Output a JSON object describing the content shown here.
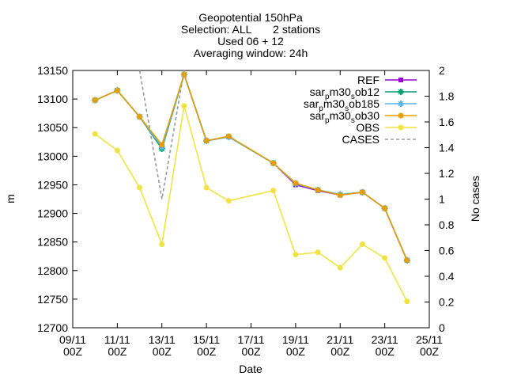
{
  "chart_data": {
    "type": "line",
    "title_lines": [
      "Geopotential 150hPa",
      "Selection: ALL       2 stations",
      "Used 06 + 12",
      "Averaging window: 24h"
    ],
    "xlabel": "Date",
    "ylabel": "m",
    "y2label": "No cases",
    "x_range": [
      "2022-11-09T00:00",
      "2022-11-25T00:00"
    ],
    "x_ticks": [
      {
        "date": "2022-11-09T00:00",
        "line1": "09/11",
        "line2": "00Z"
      },
      {
        "date": "2022-11-11T00:00",
        "line1": "11/11",
        "line2": "00Z"
      },
      {
        "date": "2022-11-13T00:00",
        "line1": "13/11",
        "line2": "00Z"
      },
      {
        "date": "2022-11-15T00:00",
        "line1": "15/11",
        "line2": "00Z"
      },
      {
        "date": "2022-11-17T00:00",
        "line1": "17/11",
        "line2": "00Z"
      },
      {
        "date": "2022-11-19T00:00",
        "line1": "19/11",
        "line2": "00Z"
      },
      {
        "date": "2022-11-21T00:00",
        "line1": "21/11",
        "line2": "00Z"
      },
      {
        "date": "2022-11-23T00:00",
        "line1": "23/11",
        "line2": "00Z"
      },
      {
        "date": "2022-11-25T00:00",
        "line1": "25/11",
        "line2": "00Z"
      }
    ],
    "ylim": [
      12700,
      13150
    ],
    "y_ticks": [
      12700,
      12750,
      12800,
      12850,
      12900,
      12950,
      13000,
      13050,
      13100,
      13150
    ],
    "y2lim": [
      0,
      2
    ],
    "y2_ticks": [
      0,
      0.2,
      0.4,
      0.6,
      0.8,
      1,
      1.2,
      1.4,
      1.6,
      1.8,
      2
    ],
    "legend_position": "top-right",
    "x": [
      "2022-11-10T00:00",
      "2022-11-11T00:00",
      "2022-11-12T00:00",
      "2022-11-13T00:00",
      "2022-11-14T00:00",
      "2022-11-15T00:00",
      "2022-11-16T00:00",
      "2022-11-18T00:00",
      "2022-11-19T00:00",
      "2022-11-20T00:00",
      "2022-11-21T00:00",
      "2022-11-22T00:00",
      "2022-11-23T00:00",
      "2022-11-24T00:00"
    ],
    "series": [
      {
        "name": "REF",
        "color": "#9400d3",
        "marker": "square",
        "axis": "y",
        "values": [
          13098,
          13115,
          13069,
          13018,
          13143,
          13027,
          13034,
          12988,
          12950,
          12940,
          12932,
          12937,
          12909,
          12818
        ]
      },
      {
        "name": "sar_{p}m30_{s}ob12",
        "color": "#009e73",
        "marker": "star",
        "axis": "y",
        "values": [
          13098,
          13115,
          13069,
          13013,
          13143,
          13027,
          13034,
          12988,
          12952,
          12941,
          12933,
          12937,
          12909,
          12818
        ]
      },
      {
        "name": "sar_{p}m30_{s}ob185",
        "color": "#56b4e9",
        "marker": "star",
        "axis": "y",
        "values": [
          13098,
          13115,
          13069,
          13016,
          13143,
          13027,
          13034,
          12988,
          12952,
          12941,
          12933,
          12937,
          12909,
          12818
        ]
      },
      {
        "name": "sar_{p}m30_{s}ob30",
        "color": "#e69f00",
        "marker": "circle",
        "axis": "y",
        "values": [
          13098,
          13115,
          13069,
          13020,
          13143,
          13027,
          13035,
          12988,
          12953,
          12941,
          12932,
          12937,
          12909,
          12818
        ]
      },
      {
        "name": "OBS",
        "color": "#f0e442",
        "marker": "circle",
        "axis": "y",
        "values": [
          13039,
          13010,
          12945,
          12846,
          13088,
          12945,
          12922,
          12940,
          12828,
          12832,
          12805,
          12846,
          12822,
          12746
        ]
      },
      {
        "name": "CASES",
        "color": "#999999",
        "marker": "none",
        "dash": true,
        "axis": "y2",
        "x": [
          "2022-11-12T00:00",
          "2022-11-13T00:00",
          "2022-11-14T00:00"
        ],
        "values": [
          2,
          1,
          2
        ]
      }
    ]
  }
}
